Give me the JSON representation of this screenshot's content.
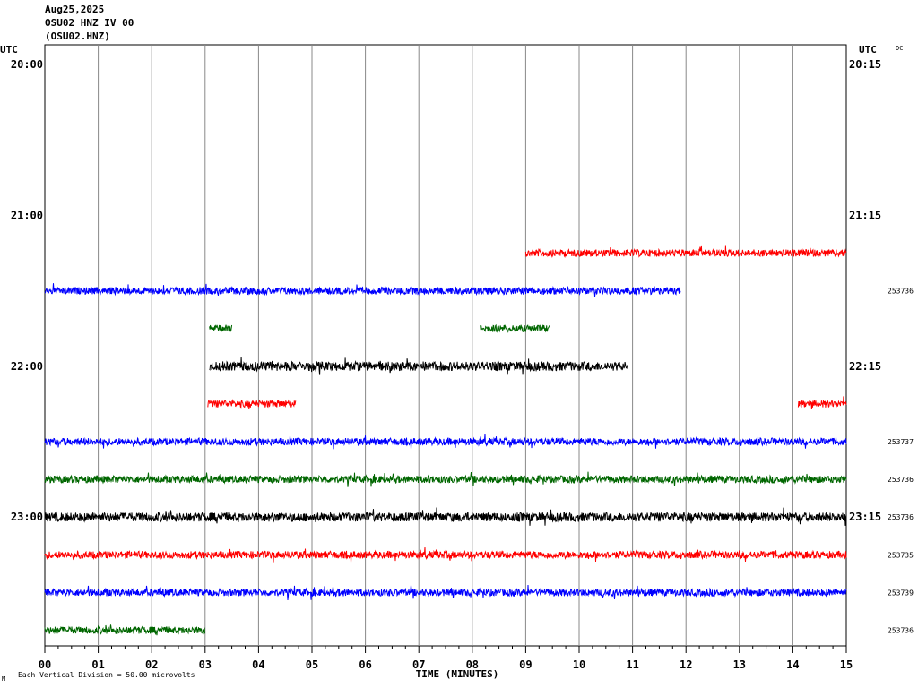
{
  "header": {
    "date": "Aug25,2025",
    "station_line": "OSU02 HNZ IV 00",
    "station_code": "(OSU02.HNZ)"
  },
  "corner_labels": {
    "left_tz": "UTC",
    "right_tz": "UTC",
    "dc": "DC"
  },
  "footer": {
    "vertical_division": "Each Vertical Division =   50.00 microvolts",
    "mark": "M"
  },
  "chart_data": {
    "type": "line",
    "xlabel": "TIME (MINUTES)",
    "xlim": [
      0,
      15
    ],
    "x_tick_labels": [
      "00",
      "01",
      "02",
      "03",
      "04",
      "05",
      "06",
      "07",
      "08",
      "09",
      "10",
      "11",
      "12",
      "13",
      "14",
      "15"
    ],
    "row_count": 16,
    "left_time_labels": [
      {
        "row": 0,
        "label": "20:00"
      },
      {
        "row": 4,
        "label": "21:00"
      },
      {
        "row": 8,
        "label": "22:00"
      },
      {
        "row": 12,
        "label": "23:00"
      }
    ],
    "right_time_labels": [
      {
        "row": 0,
        "label": "20:15"
      },
      {
        "row": 4,
        "label": "21:15"
      },
      {
        "row": 8,
        "label": "22:15"
      },
      {
        "row": 12,
        "label": "23:15"
      }
    ],
    "traces": [
      {
        "row": 5,
        "color": "#ff0000",
        "segments": [
          [
            9.0,
            15.0
          ]
        ],
        "amp": 4,
        "count": ""
      },
      {
        "row": 6,
        "color": "#0000ff",
        "segments": [
          [
            0.0,
            11.9
          ]
        ],
        "amp": 4,
        "count": "253736"
      },
      {
        "row": 7,
        "color": "#006600",
        "segments": [
          [
            3.08,
            3.5
          ],
          [
            8.15,
            9.45
          ]
        ],
        "amp": 4,
        "count": ""
      },
      {
        "row": 8,
        "color": "#000000",
        "segments": [
          [
            3.08,
            10.9
          ]
        ],
        "amp": 5,
        "count": ""
      },
      {
        "row": 9,
        "color": "#ff0000",
        "segments": [
          [
            3.05,
            4.7
          ],
          [
            14.1,
            15.0
          ]
        ],
        "amp": 4,
        "count": ""
      },
      {
        "row": 10,
        "color": "#0000ff",
        "segments": [
          [
            0.0,
            15.0
          ]
        ],
        "amp": 4,
        "count": "253737"
      },
      {
        "row": 11,
        "color": "#006600",
        "segments": [
          [
            0.0,
            15.0
          ]
        ],
        "amp": 4,
        "count": "253736"
      },
      {
        "row": 12,
        "color": "#000000",
        "segments": [
          [
            0.0,
            15.0
          ]
        ],
        "amp": 5,
        "count": "253736"
      },
      {
        "row": 13,
        "color": "#ff0000",
        "segments": [
          [
            0.0,
            15.0
          ]
        ],
        "amp": 4,
        "count": "253735"
      },
      {
        "row": 14,
        "color": "#0000ff",
        "segments": [
          [
            0.0,
            15.0
          ]
        ],
        "amp": 4,
        "count": "253739"
      },
      {
        "row": 15,
        "color": "#006600",
        "segments": [
          [
            0.0,
            3.0
          ]
        ],
        "amp": 4,
        "count": "253736"
      }
    ]
  }
}
